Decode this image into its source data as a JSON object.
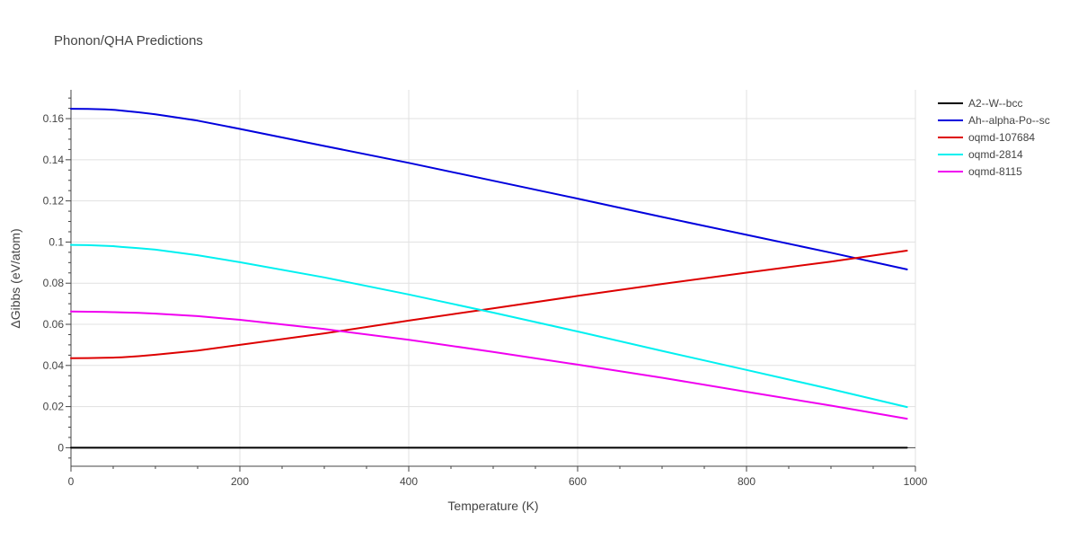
{
  "chart_data": {
    "type": "line",
    "title": "Phonon/QHA Predictions",
    "xlabel": "Temperature (K)",
    "ylabel": "ΔGibbs (eV/atom)",
    "xlim": [
      0,
      1000
    ],
    "ylim": [
      -0.009,
      0.174
    ],
    "x_ticks": [
      0,
      200,
      400,
      600,
      800,
      1000
    ],
    "y_ticks": [
      0,
      0.02,
      0.04,
      0.06,
      0.08,
      0.1,
      0.12,
      0.14,
      0.16
    ],
    "y_tick_labels": [
      "0",
      "0.02",
      "0.04",
      "0.06",
      "0.08",
      "0.1",
      "0.12",
      "0.14",
      "0.16"
    ],
    "grid": true,
    "legend_position": "top-right",
    "x": [
      0,
      20,
      40,
      50,
      60,
      80,
      100,
      150,
      200,
      300,
      400,
      500,
      600,
      700,
      800,
      900,
      990
    ],
    "series": [
      {
        "name": "A2--W--bcc",
        "color": "#000000",
        "values": [
          0,
          0,
          0,
          0,
          0,
          0,
          0,
          0,
          0,
          0,
          0,
          0,
          0,
          0,
          0,
          0,
          0
        ]
      },
      {
        "name": "Ah--alpha-Po--sc",
        "color": "#0000dd",
        "values": [
          0.1648,
          0.1647,
          0.1645,
          0.1643,
          0.1639,
          0.1631,
          0.1621,
          0.159,
          0.155,
          0.1467,
          0.1385,
          0.1298,
          0.1211,
          0.1122,
          0.1035,
          0.0948,
          0.0867
        ]
      },
      {
        "name": "oqmd-107684",
        "color": "#dd0000",
        "values": [
          0.0435,
          0.0436,
          0.0437,
          0.0438,
          0.044,
          0.0445,
          0.0452,
          0.0472,
          0.05,
          0.0556,
          0.0618,
          0.0678,
          0.0738,
          0.0796,
          0.0851,
          0.0905,
          0.0958
        ]
      },
      {
        "name": "oqmd-2814",
        "color": "#00f0f0",
        "values": [
          0.0986,
          0.0985,
          0.0982,
          0.098,
          0.0976,
          0.097,
          0.0963,
          0.0936,
          0.0902,
          0.0828,
          0.0745,
          0.0657,
          0.0565,
          0.0471,
          0.0378,
          0.0285,
          0.0198
        ]
      },
      {
        "name": "oqmd-8115",
        "color": "#f000f0",
        "values": [
          0.0662,
          0.0661,
          0.066,
          0.0659,
          0.0658,
          0.0656,
          0.0652,
          0.064,
          0.0622,
          0.0577,
          0.0525,
          0.0466,
          0.0404,
          0.034,
          0.0272,
          0.0205,
          0.0141
        ]
      }
    ]
  }
}
